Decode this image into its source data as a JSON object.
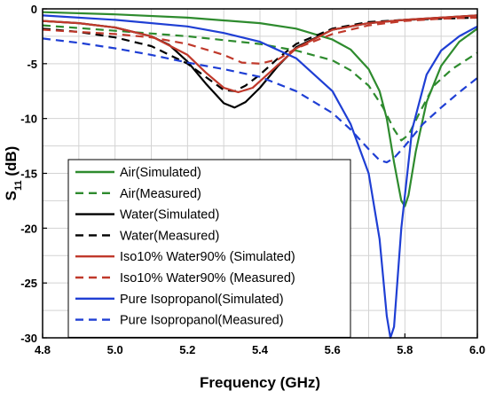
{
  "chart_data": {
    "type": "line",
    "title": "",
    "xlabel": "Frequency (GHz)",
    "ylabel_main": "S",
    "ylabel_sub": "11",
    "ylabel_unit": " (dB)",
    "xlim": [
      4.8,
      6.0
    ],
    "ylim": [
      -30,
      0
    ],
    "x_ticks": [
      4.8,
      5.0,
      5.2,
      5.4,
      5.6,
      5.8,
      6.0
    ],
    "x_tick_labels": [
      "4.8",
      "5.0",
      "5.2",
      "5.4",
      "5.6",
      "5.8",
      "6.0"
    ],
    "y_ticks": [
      0,
      -5,
      -10,
      -15,
      -20,
      -25,
      -30
    ],
    "y_tick_labels": [
      "0",
      "-5",
      "-10",
      "-15",
      "-20",
      "-25",
      "-30"
    ],
    "grid": true,
    "legend_position": "bottom-left",
    "series": [
      {
        "name": "Air(Simulated)",
        "color": "#2e8b2e",
        "dash": "solid",
        "points": [
          [
            4.8,
            -0.3
          ],
          [
            5.0,
            -0.5
          ],
          [
            5.2,
            -0.8
          ],
          [
            5.4,
            -1.3
          ],
          [
            5.5,
            -1.8
          ],
          [
            5.6,
            -2.8
          ],
          [
            5.65,
            -3.7
          ],
          [
            5.7,
            -5.5
          ],
          [
            5.73,
            -7.5
          ],
          [
            5.75,
            -10
          ],
          [
            5.77,
            -14
          ],
          [
            5.79,
            -17.5
          ],
          [
            5.8,
            -18
          ],
          [
            5.81,
            -17
          ],
          [
            5.83,
            -13
          ],
          [
            5.86,
            -8.5
          ],
          [
            5.9,
            -5.2
          ],
          [
            5.95,
            -3
          ],
          [
            6.0,
            -1.8
          ]
        ]
      },
      {
        "name": "Air(Measured)",
        "color": "#2e8b2e",
        "dash": "dashed",
        "points": [
          [
            4.8,
            -1.5
          ],
          [
            5.0,
            -2.0
          ],
          [
            5.2,
            -2.5
          ],
          [
            5.4,
            -3.2
          ],
          [
            5.5,
            -3.8
          ],
          [
            5.6,
            -4.7
          ],
          [
            5.65,
            -5.6
          ],
          [
            5.7,
            -7
          ],
          [
            5.74,
            -9
          ],
          [
            5.77,
            -11
          ],
          [
            5.79,
            -12
          ],
          [
            5.81,
            -11.5
          ],
          [
            5.84,
            -9.5
          ],
          [
            5.88,
            -7
          ],
          [
            5.93,
            -5.5
          ],
          [
            6.0,
            -4
          ]
        ]
      },
      {
        "name": "Water(Simulated)",
        "color": "#000000",
        "dash": "solid",
        "points": [
          [
            4.8,
            -1.1
          ],
          [
            4.9,
            -1.3
          ],
          [
            5.0,
            -1.7
          ],
          [
            5.1,
            -2.5
          ],
          [
            5.15,
            -3.3
          ],
          [
            5.2,
            -4.8
          ],
          [
            5.25,
            -6.8
          ],
          [
            5.3,
            -8.6
          ],
          [
            5.33,
            -9
          ],
          [
            5.36,
            -8.5
          ],
          [
            5.4,
            -7.2
          ],
          [
            5.45,
            -5.2
          ],
          [
            5.5,
            -3.5
          ],
          [
            5.6,
            -1.9
          ],
          [
            5.7,
            -1.3
          ],
          [
            5.8,
            -1.0
          ],
          [
            5.9,
            -0.8
          ],
          [
            6.0,
            -0.6
          ]
        ]
      },
      {
        "name": "Water(Measured)",
        "color": "#000000",
        "dash": "dashed",
        "points": [
          [
            4.8,
            -1.8
          ],
          [
            4.9,
            -2.1
          ],
          [
            5.0,
            -2.6
          ],
          [
            5.1,
            -3.4
          ],
          [
            5.2,
            -5
          ],
          [
            5.25,
            -6.2
          ],
          [
            5.3,
            -7.4
          ],
          [
            5.33,
            -7.5
          ],
          [
            5.36,
            -7
          ],
          [
            5.4,
            -6
          ],
          [
            5.45,
            -4.5
          ],
          [
            5.5,
            -3.2
          ],
          [
            5.6,
            -1.8
          ],
          [
            5.7,
            -1.2
          ],
          [
            5.8,
            -1.0
          ],
          [
            5.9,
            -0.9
          ],
          [
            6.0,
            -0.8
          ]
        ]
      },
      {
        "name": "Iso10% Water90% (Simulated)",
        "color": "#c0392b",
        "dash": "solid",
        "points": [
          [
            4.8,
            -1.1
          ],
          [
            4.9,
            -1.3
          ],
          [
            5.0,
            -1.7
          ],
          [
            5.1,
            -2.5
          ],
          [
            5.2,
            -4.2
          ],
          [
            5.25,
            -5.8
          ],
          [
            5.3,
            -7.2
          ],
          [
            5.34,
            -7.6
          ],
          [
            5.38,
            -7.2
          ],
          [
            5.42,
            -6
          ],
          [
            5.5,
            -3.6
          ],
          [
            5.6,
            -1.9
          ],
          [
            5.7,
            -1.3
          ],
          [
            5.8,
            -1.0
          ],
          [
            5.9,
            -0.8
          ],
          [
            6.0,
            -0.6
          ]
        ]
      },
      {
        "name": "Iso10% Water90% (Measured)",
        "color": "#c0392b",
        "dash": "dashed",
        "points": [
          [
            4.8,
            -1.9
          ],
          [
            4.9,
            -2.1
          ],
          [
            5.0,
            -2.3
          ],
          [
            5.1,
            -2.6
          ],
          [
            5.2,
            -3.2
          ],
          [
            5.3,
            -4.2
          ],
          [
            5.35,
            -4.9
          ],
          [
            5.4,
            -5
          ],
          [
            5.45,
            -4.6
          ],
          [
            5.5,
            -3.6
          ],
          [
            5.6,
            -2.3
          ],
          [
            5.7,
            -1.5
          ],
          [
            5.8,
            -1.1
          ],
          [
            5.9,
            -0.9
          ],
          [
            6.0,
            -0.8
          ]
        ]
      },
      {
        "name": "Pure Isopropanol(Simulated)",
        "color": "#1f3fd4",
        "dash": "solid",
        "points": [
          [
            4.8,
            -0.6
          ],
          [
            5.0,
            -1.0
          ],
          [
            5.2,
            -1.6
          ],
          [
            5.3,
            -2.2
          ],
          [
            5.4,
            -3.0
          ],
          [
            5.5,
            -4.5
          ],
          [
            5.6,
            -7.5
          ],
          [
            5.65,
            -10.5
          ],
          [
            5.7,
            -15
          ],
          [
            5.73,
            -21
          ],
          [
            5.75,
            -28
          ],
          [
            5.76,
            -30
          ],
          [
            5.77,
            -29
          ],
          [
            5.79,
            -20
          ],
          [
            5.82,
            -11
          ],
          [
            5.86,
            -6
          ],
          [
            5.9,
            -3.8
          ],
          [
            5.95,
            -2.5
          ],
          [
            6.0,
            -1.6
          ]
        ]
      },
      {
        "name": "Pure Isopropanol(Measured)",
        "color": "#1f3fd4",
        "dash": "dashed",
        "points": [
          [
            4.8,
            -2.7
          ],
          [
            4.9,
            -3.1
          ],
          [
            5.0,
            -3.6
          ],
          [
            5.1,
            -4.2
          ],
          [
            5.2,
            -4.9
          ],
          [
            5.3,
            -5.5
          ],
          [
            5.4,
            -6.2
          ],
          [
            5.5,
            -7.5
          ],
          [
            5.6,
            -9.5
          ],
          [
            5.65,
            -11
          ],
          [
            5.7,
            -12.8
          ],
          [
            5.73,
            -13.8
          ],
          [
            5.75,
            -14
          ],
          [
            5.77,
            -13.6
          ],
          [
            5.8,
            -12.5
          ],
          [
            5.85,
            -10.5
          ],
          [
            5.9,
            -9
          ],
          [
            5.95,
            -7.6
          ],
          [
            6.0,
            -6.3
          ]
        ]
      }
    ]
  }
}
